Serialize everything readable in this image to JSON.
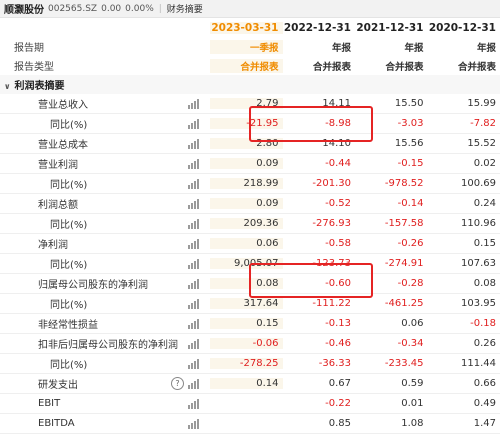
{
  "header": {
    "stock_name": "顺灏股份",
    "stock_code": "002565.SZ",
    "price": "0.00",
    "change": "0.00%",
    "tab": "财务摘要"
  },
  "table": {
    "periods": [
      "2023-03-31",
      "2022-12-31",
      "2021-12-31",
      "2020-12-31"
    ],
    "period_label": "报告期",
    "report_type_label": "报告类型",
    "report_types_row1": [
      "一季报",
      "年报",
      "年报",
      "年报"
    ],
    "report_types_row2": [
      "合并报表",
      "合并报表",
      "合并报表",
      "合并报表"
    ],
    "section_title": "利润表摘要",
    "rows": [
      {
        "label": "营业总收入",
        "values": [
          "2.79",
          "14.11",
          "15.50",
          "15.99"
        ],
        "indent": 1
      },
      {
        "label": "同比(%)",
        "values": [
          "-21.95",
          "-8.98",
          "-3.03",
          "-7.82"
        ],
        "indent": 2
      },
      {
        "label": "营业总成本",
        "values": [
          "2.80",
          "14.10",
          "15.56",
          "15.52"
        ],
        "indent": 1
      },
      {
        "label": "营业利润",
        "values": [
          "0.09",
          "-0.44",
          "-0.15",
          "0.02"
        ],
        "indent": 1
      },
      {
        "label": "同比(%)",
        "values": [
          "218.99",
          "-201.30",
          "-978.52",
          "100.69"
        ],
        "indent": 2
      },
      {
        "label": "利润总额",
        "values": [
          "0.09",
          "-0.52",
          "-0.14",
          "0.24"
        ],
        "indent": 1
      },
      {
        "label": "同比(%)",
        "values": [
          "209.36",
          "-276.93",
          "-157.58",
          "110.96"
        ],
        "indent": 2
      },
      {
        "label": "净利润",
        "values": [
          "0.06",
          "-0.58",
          "-0.26",
          "0.15"
        ],
        "indent": 1
      },
      {
        "label": "同比(%)",
        "values": [
          "9,005.07",
          "-123.73",
          "-274.91",
          "107.63"
        ],
        "indent": 2
      },
      {
        "label": "归属母公司股东的净利润",
        "values": [
          "0.08",
          "-0.60",
          "-0.28",
          "0.08"
        ],
        "indent": 1
      },
      {
        "label": "同比(%)",
        "values": [
          "317.64",
          "-111.22",
          "-461.25",
          "103.95"
        ],
        "indent": 2
      },
      {
        "label": "非经常性损益",
        "values": [
          "0.15",
          "-0.13",
          "0.06",
          "-0.18"
        ],
        "indent": 1
      },
      {
        "label": "扣非后归属母公司股东的净利润",
        "values": [
          "-0.06",
          "-0.46",
          "-0.34",
          "0.26"
        ],
        "indent": 1
      },
      {
        "label": "同比(%)",
        "values": [
          "-278.25",
          "-36.33",
          "-233.45",
          "111.44"
        ],
        "indent": 2
      },
      {
        "label": "研发支出",
        "values": [
          "0.14",
          "0.67",
          "0.59",
          "0.66"
        ],
        "indent": 1,
        "help": "?"
      },
      {
        "label": "EBIT",
        "values": [
          "",
          "-0.22",
          "0.01",
          "0.49"
        ],
        "indent": 1
      },
      {
        "label": "EBITDA",
        "values": [
          "",
          "0.85",
          "1.08",
          "1.47"
        ],
        "indent": 1
      }
    ]
  },
  "colors": {
    "negative": "#e02020",
    "highlight_period": "#f08c00",
    "highlight_column_bg": "#fbf6ea",
    "annotation_box": "#e52424"
  },
  "icons": {
    "collapse": "chevron-down-icon",
    "trend": "bar-chart-icon",
    "help": "help-circle-icon"
  }
}
